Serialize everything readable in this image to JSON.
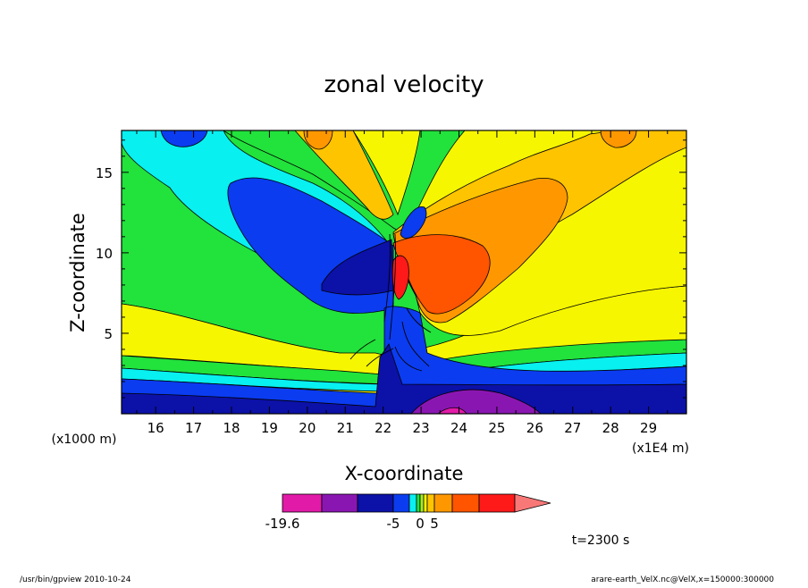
{
  "chart_data": {
    "type": "heatmap",
    "title": "zonal velocity",
    "xlabel": "X-coordinate",
    "ylabel": "Z-coordinate",
    "x_unit": "(x1E4 m)",
    "y_unit": "(x1000 m)",
    "xlim": [
      15.1,
      30.0
    ],
    "ylim": [
      0.0,
      17.6
    ],
    "x_ticks": [
      "16",
      "17",
      "18",
      "19",
      "20",
      "21",
      "22",
      "23",
      "24",
      "25",
      "26",
      "27",
      "28",
      "29"
    ],
    "y_ticks": [
      "5",
      "10",
      "15"
    ],
    "x_tick_values": [
      16,
      17,
      18,
      19,
      20,
      21,
      22,
      23,
      24,
      25,
      26,
      27,
      28,
      29
    ],
    "y_tick_values": [
      5,
      10,
      15
    ],
    "colorbar": {
      "labels": [
        "-19.6",
        "-5",
        "0",
        "5"
      ],
      "label_values": [
        -19.6,
        -5,
        0,
        5
      ],
      "levels": [
        -19.6,
        -15,
        -10,
        -5,
        -2.5,
        -1,
        0,
        1,
        2.5,
        5,
        10,
        15
      ],
      "colors": [
        "#e21aa8",
        "#8a16b2",
        "#0c11a8",
        "#0b3cf0",
        "#08f0f0",
        "#22e23c",
        "#a8ec20",
        "#f6f600",
        "#ffc400",
        "#ff9800",
        "#ff5400",
        "#ff1a1a",
        "#f87878"
      ]
    },
    "time_label": "t=2300 s"
  },
  "footer": {
    "left": "/usr/bin/gpview   2010-10-24",
    "right": "arare-earth_VelX.nc@VelX,x=150000:300000"
  }
}
